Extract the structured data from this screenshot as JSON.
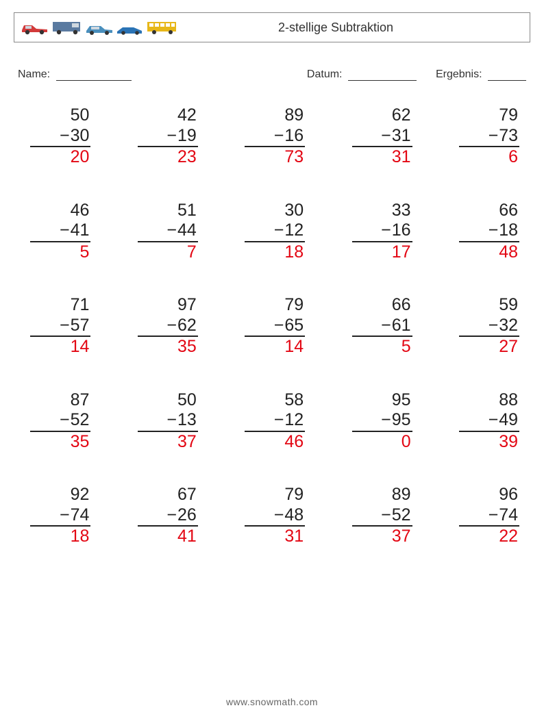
{
  "header": {
    "title": "2-stellige Subtraktion",
    "vehicle_colors": {
      "car1_body": "#d23a3a",
      "car1_accent": "#5b6a7a",
      "van_body": "#5a7aa0",
      "van_accent": "#aab8c8",
      "car3_body": "#4a8fbd",
      "car3_accent": "#2e5f82",
      "car4_body": "#2a73b5",
      "car4_accent": "#1a4e7d",
      "bus_body": "#e7b719",
      "bus_accent": "#caa214",
      "wheel": "#333333"
    }
  },
  "labels": {
    "name": "Name:",
    "datum": "Datum:",
    "ergebnis": "Ergebnis:"
  },
  "style": {
    "answer_color": "#e30613",
    "text_color": "#222222",
    "border_color": "#888888",
    "font_size_problem": 25,
    "font_size_title": 18,
    "font_size_labels": 16,
    "font_size_footer": 14,
    "background": "#ffffff",
    "grid_cols": 5,
    "grid_rows": 5,
    "col_gap": 60,
    "row_gap": 48
  },
  "problems": [
    {
      "a": 50,
      "b": 30,
      "r": 20
    },
    {
      "a": 42,
      "b": 19,
      "r": 23
    },
    {
      "a": 89,
      "b": 16,
      "r": 73
    },
    {
      "a": 62,
      "b": 31,
      "r": 31
    },
    {
      "a": 79,
      "b": 73,
      "r": 6
    },
    {
      "a": 46,
      "b": 41,
      "r": 5
    },
    {
      "a": 51,
      "b": 44,
      "r": 7
    },
    {
      "a": 30,
      "b": 12,
      "r": 18
    },
    {
      "a": 33,
      "b": 16,
      "r": 17
    },
    {
      "a": 66,
      "b": 18,
      "r": 48
    },
    {
      "a": 71,
      "b": 57,
      "r": 14
    },
    {
      "a": 97,
      "b": 62,
      "r": 35
    },
    {
      "a": 79,
      "b": 65,
      "r": 14
    },
    {
      "a": 66,
      "b": 61,
      "r": 5
    },
    {
      "a": 59,
      "b": 32,
      "r": 27
    },
    {
      "a": 87,
      "b": 52,
      "r": 35
    },
    {
      "a": 50,
      "b": 13,
      "r": 37
    },
    {
      "a": 58,
      "b": 12,
      "r": 46
    },
    {
      "a": 95,
      "b": 95,
      "r": 0
    },
    {
      "a": 88,
      "b": 49,
      "r": 39
    },
    {
      "a": 92,
      "b": 74,
      "r": 18
    },
    {
      "a": 67,
      "b": 26,
      "r": 41
    },
    {
      "a": 79,
      "b": 48,
      "r": 31
    },
    {
      "a": 89,
      "b": 52,
      "r": 37
    },
    {
      "a": 96,
      "b": 74,
      "r": 22
    }
  ],
  "footer": "www.snowmath.com"
}
